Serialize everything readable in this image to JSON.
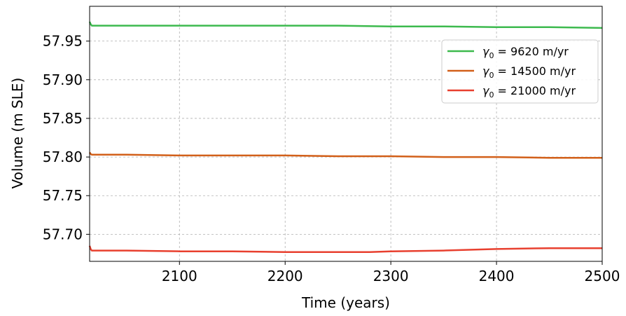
{
  "chart_data": {
    "type": "line",
    "title": "",
    "xlabel": "Time (years)",
    "ylabel": "Volume (m SLE)",
    "xlim": [
      2015,
      2500
    ],
    "ylim": [
      57.665,
      57.995
    ],
    "xticks": [
      2100,
      2200,
      2300,
      2400,
      2500
    ],
    "yticks": [
      57.7,
      57.75,
      57.8,
      57.85,
      57.9,
      57.95
    ],
    "ytick_labels": [
      "57.70",
      "57.75",
      "57.80",
      "57.85",
      "57.90",
      "57.95"
    ],
    "grid": true,
    "legend_position": "upper-right",
    "series": [
      {
        "name": "γ₀ = 9620 m/yr",
        "legend_symbol": "γ",
        "legend_subscript": "0",
        "legend_rest": " = 9620 m/yr",
        "color": "#3dba4e",
        "x": [
          2015,
          2016,
          2017,
          2050,
          2100,
          2150,
          2200,
          2250,
          2300,
          2350,
          2400,
          2450,
          2500
        ],
        "y": [
          57.975,
          57.972,
          57.97,
          57.97,
          57.97,
          57.97,
          57.97,
          57.97,
          57.969,
          57.969,
          57.968,
          57.968,
          57.967
        ]
      },
      {
        "name": "γ₀ = 14500 m/yr",
        "legend_symbol": "γ",
        "legend_subscript": "0",
        "legend_rest": " = 14500 m/yr",
        "color": "#d2601a",
        "x": [
          2015,
          2016,
          2017,
          2050,
          2100,
          2150,
          2200,
          2250,
          2300,
          2350,
          2400,
          2450,
          2500
        ],
        "y": [
          57.806,
          57.804,
          57.803,
          57.803,
          57.802,
          57.802,
          57.802,
          57.801,
          57.801,
          57.8,
          57.8,
          57.799,
          57.799
        ]
      },
      {
        "name": "γ₀ = 21000 m/yr",
        "legend_symbol": "γ",
        "legend_subscript": "0",
        "legend_rest": " = 21000 m/yr",
        "color": "#e8402f",
        "x": [
          2015,
          2016,
          2017,
          2050,
          2100,
          2150,
          2200,
          2250,
          2280,
          2300,
          2350,
          2400,
          2450,
          2500
        ],
        "y": [
          57.685,
          57.681,
          57.679,
          57.679,
          57.678,
          57.678,
          57.677,
          57.677,
          57.677,
          57.678,
          57.679,
          57.681,
          57.682,
          57.682
        ]
      }
    ]
  }
}
